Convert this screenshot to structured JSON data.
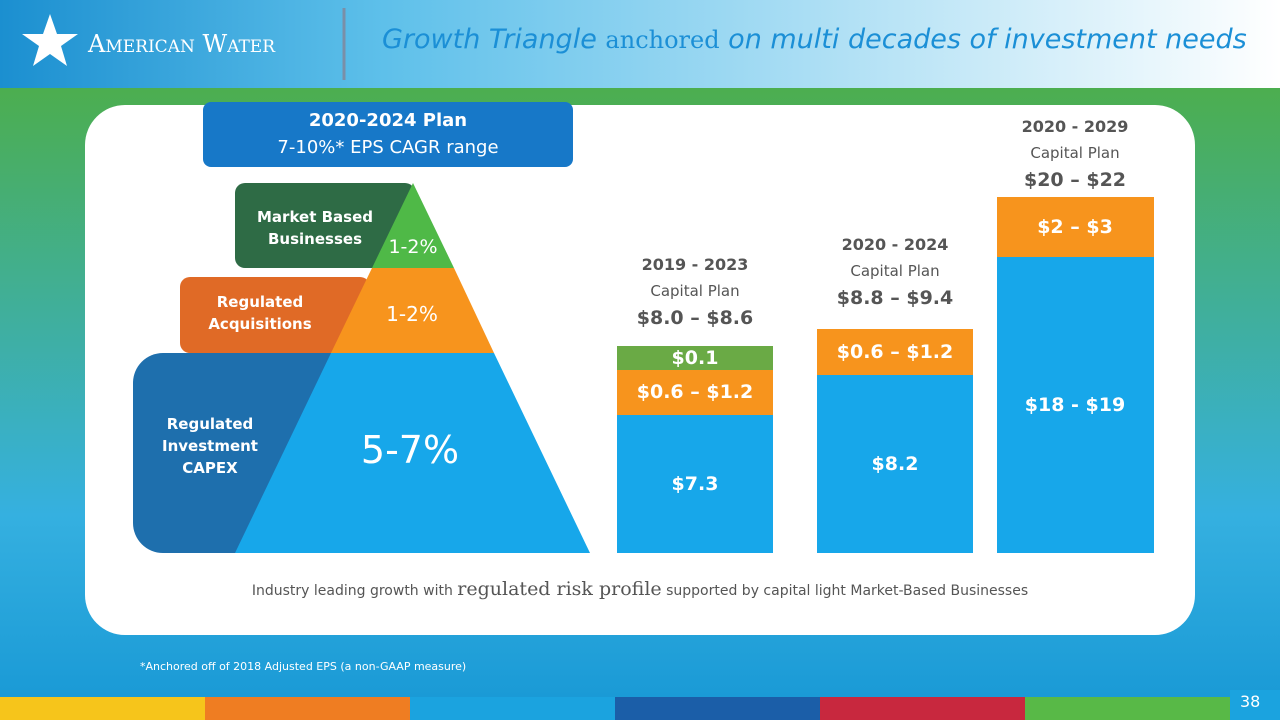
{
  "header": {
    "logo": "American Water",
    "title_parts": [
      "Growth Triangle",
      "anchored",
      "on multi decades of investment needs"
    ]
  },
  "plan_box": {
    "title": "2020-2024 Plan",
    "subtitle": "7-10%* EPS CAGR range"
  },
  "triangle": {
    "levels": [
      {
        "label": "Market Based Businesses",
        "value": "1-2%"
      },
      {
        "label": "Regulated Acquisitions",
        "value": "1-2%"
      },
      {
        "label": "Regulated Investment CAPEX",
        "value": "5-7%"
      }
    ]
  },
  "columns": [
    {
      "period": "2019 - 2023",
      "caption": "Capital Plan",
      "total": "$8.0 – $8.6",
      "segments": [
        "$7.3",
        "$0.6 – $1.2",
        "$0.1"
      ]
    },
    {
      "period": "2020 - 2024",
      "caption": "Capital Plan",
      "total": "$8.8 – $9.4",
      "segments": [
        "$8.2",
        "$0.6 – $1.2"
      ]
    },
    {
      "period": "2020 - 2029",
      "caption": "Capital Plan",
      "total": "$20 – $22",
      "segments": [
        "$18 - $19",
        "$2 – $3"
      ]
    }
  ],
  "tagline_parts": [
    "Industry leading growth with",
    "regulated risk profile",
    "supported by capital light Market-Based Businesses"
  ],
  "footnote": "*Anchored off of 2018 Adjusted EPS (a non-GAAP measure)",
  "page_number": "38"
}
